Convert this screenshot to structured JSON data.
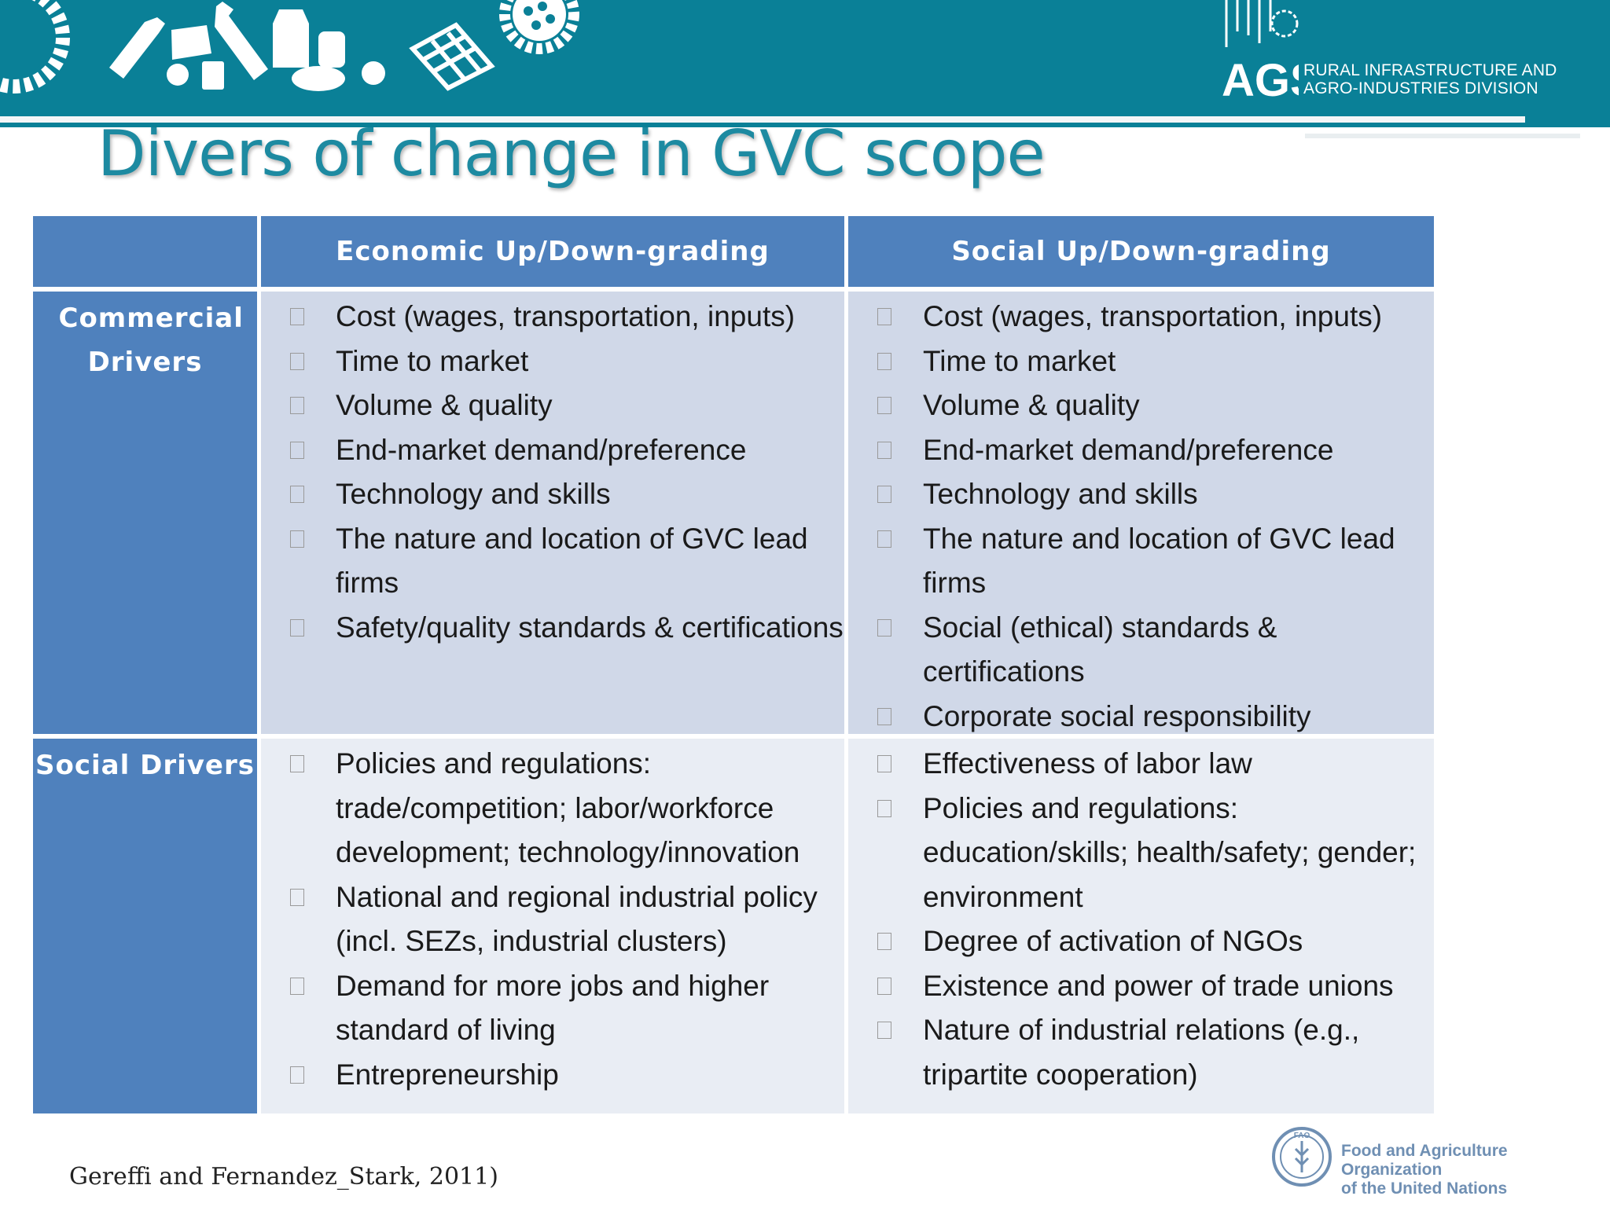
{
  "header": {
    "division_logo_text": "AGS",
    "division_name_line1": "RURAL INFRASTRUCTURE AND",
    "division_name_line2": "AGRO-INDUSTRIES DIVISION",
    "decorative_icons": [
      "gear-icon",
      "bottle-icon",
      "cheese-icon",
      "apple-icon",
      "cup-icon",
      "bottle-icon",
      "milk-carton-icon",
      "can-icon",
      "bread-icon",
      "tomato-icon",
      "basket-icon",
      "gear-icon"
    ]
  },
  "slide": {
    "title": "Divers of change in GVC scope"
  },
  "table": {
    "columns": [
      "",
      "Economic Up/Down-grading",
      "Social Up/Down-grading"
    ],
    "rows": [
      {
        "label": "Commercial Drivers",
        "economic": [
          "Cost (wages, transportation, inputs)",
          "Time to market",
          "Volume & quality",
          "End-market demand/preference",
          "Technology and skills",
          "The nature and location of GVC lead firms",
          "Safety/quality standards & certifications"
        ],
        "social": [
          "Cost (wages, transportation, inputs)",
          "Time to market",
          "Volume & quality",
          "End-market demand/preference",
          "Technology and skills",
          "The nature and location of GVC lead firms",
          "Social (ethical) standards & certifications",
          "Corporate social responsibility"
        ]
      },
      {
        "label": "Social Drivers",
        "economic": [
          "Policies and regulations: trade/competition; labor/workforce development; technology/innovation",
          "National and regional industrial policy (incl. SEZs, industrial clusters)",
          "Demand for more jobs and higher standard of living",
          "Entrepreneurship"
        ],
        "social": [
          "Effectiveness of labor law",
          "Policies and regulations: education/skills; health/safety; gender; environment",
          "Degree of activation of NGOs",
          "Existence and power of trade unions",
          "Nature of industrial relations (e.g., tripartite cooperation)"
        ]
      }
    ]
  },
  "footer": {
    "citation": "Gereffi and Fernandez_Stark, 2011)",
    "org_logo_text": "FAO",
    "org_name_line1": "Food and Agriculture Organization",
    "org_name_line2": "of the United Nations"
  }
}
